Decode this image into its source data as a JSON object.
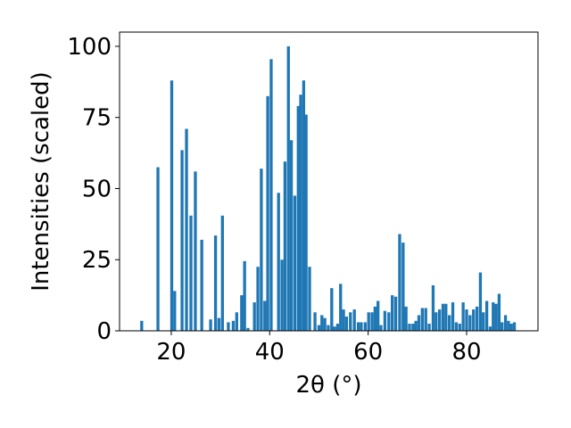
{
  "chart_data": {
    "type": "bar",
    "xlabel": "2θ (°)",
    "ylabel": "Intensities (scaled)",
    "xlim": [
      9.5,
      94.5
    ],
    "ylim": [
      0,
      105
    ],
    "grid": false,
    "bar_color": "#1f77b4",
    "bar_width": 0.6,
    "xticks": [
      20,
      40,
      60,
      80
    ],
    "yticks": [
      0,
      25,
      50,
      75,
      100
    ],
    "x": [
      14,
      17.3,
      20.1,
      20.7,
      22.2,
      23.1,
      24,
      24.9,
      26.2,
      28,
      29,
      29.7,
      30.4,
      31.6,
      32.6,
      33.3,
      34.3,
      34.9,
      35.6,
      36.9,
      37.6,
      38.3,
      39,
      39.6,
      40.3,
      41.8,
      42.5,
      43.1,
      43.8,
      44.4,
      45.1,
      45.8,
      46.3,
      46.9,
      47.4,
      48.1,
      49.2,
      50,
      50.6,
      51.2,
      51.9,
      52.6,
      53.2,
      53.8,
      54.4,
      55,
      55.6,
      56.4,
      57.2,
      58,
      58.6,
      59.4,
      60.1,
      60.8,
      61.4,
      62,
      62.6,
      63.4,
      64.2,
      64.9,
      65.6,
      66.4,
      67.1,
      67.7,
      68.4,
      69.1,
      69.7,
      70.3,
      71,
      71.7,
      72.4,
      73.2,
      73.8,
      74.5,
      75.2,
      75.8,
      76.5,
      77.2,
      77.9,
      78.6,
      79.3,
      80,
      80.7,
      81.4,
      82.1,
      82.8,
      83.4,
      84.1,
      84.8,
      85.4,
      86,
      86.6,
      87.2,
      87.9,
      88.5,
      89.1,
      89.7
    ],
    "values": [
      3.5,
      57.5,
      88,
      14,
      63.5,
      71,
      40.5,
      56,
      32,
      4,
      33.5,
      4.5,
      40.5,
      3,
      3.5,
      6.5,
      12.5,
      24.5,
      1,
      10,
      22.5,
      57,
      10.5,
      82.5,
      95.5,
      48.5,
      25,
      59.5,
      100,
      67,
      47.5,
      79,
      83,
      88,
      76,
      22.5,
      6.5,
      2,
      5.5,
      4.5,
      2,
      15,
      1.5,
      2.5,
      16.5,
      7.5,
      5,
      6.5,
      7.5,
      3,
      3,
      3,
      6.5,
      6.5,
      8.5,
      10.5,
      2,
      7,
      6.5,
      12.5,
      12,
      34,
      31,
      8.5,
      2.5,
      2.5,
      3.5,
      5.5,
      8,
      8,
      2.5,
      16,
      6.5,
      7.5,
      9.5,
      9.5,
      5.5,
      10,
      3,
      2.5,
      10,
      7.5,
      5.5,
      7.5,
      8.5,
      20.5,
      6.5,
      10.5,
      1.5,
      10,
      9.5,
      13,
      3,
      5.5,
      3.5,
      2.5,
      3
    ]
  }
}
